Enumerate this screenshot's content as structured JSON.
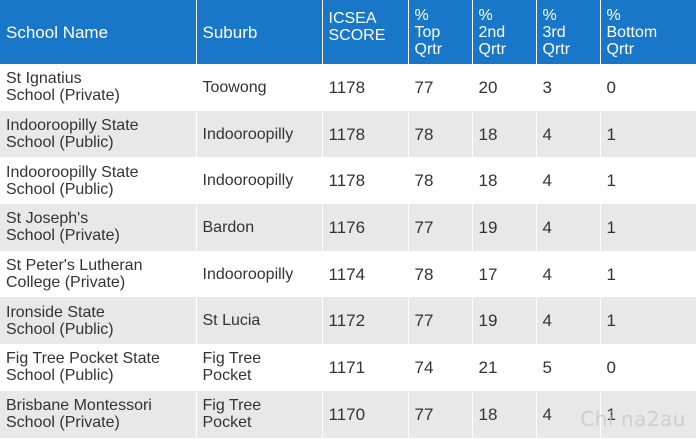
{
  "table": {
    "headers": {
      "school": "School Name",
      "suburb": "Suburb",
      "icsea": [
        "ICSEA",
        "SCORE"
      ],
      "top": [
        "%",
        "Top",
        "Qrtr"
      ],
      "second": [
        "%",
        "2nd",
        "Qrtr"
      ],
      "third": [
        "%",
        "3rd",
        "Qrtr"
      ],
      "bottom": [
        "%",
        "Bottom",
        "Qrtr"
      ]
    },
    "rows": [
      {
        "school": [
          "St Ignatius",
          "School (Private)"
        ],
        "suburb": [
          "Toowong"
        ],
        "icsea": "1178",
        "top": "77",
        "second": "20",
        "third": "3",
        "bottom": "0"
      },
      {
        "school": [
          "Indooroopilly State",
          "School (Public)"
        ],
        "suburb": [
          "Indooroopilly"
        ],
        "icsea": "1178",
        "top": "78",
        "second": "18",
        "third": "4",
        "bottom": "1"
      },
      {
        "school": [
          "Indooroopilly State",
          "School (Public)"
        ],
        "suburb": [
          "Indooroopilly"
        ],
        "icsea": "1178",
        "top": "78",
        "second": "18",
        "third": "4",
        "bottom": "1"
      },
      {
        "school": [
          "St Joseph's",
          "School (Private)"
        ],
        "suburb": [
          "Bardon"
        ],
        "icsea": "1176",
        "top": "77",
        "second": "19",
        "third": "4",
        "bottom": "1"
      },
      {
        "school": [
          "St Peter's Lutheran",
          "College (Private)"
        ],
        "suburb": [
          "Indooroopilly"
        ],
        "icsea": "1174",
        "top": "78",
        "second": "17",
        "third": "4",
        "bottom": "1"
      },
      {
        "school": [
          "Ironside State",
          "School (Public)"
        ],
        "suburb": [
          "St Lucia"
        ],
        "icsea": "1172",
        "top": "77",
        "second": "19",
        "third": "4",
        "bottom": "1"
      },
      {
        "school": [
          "Fig Tree Pocket State",
          "School (Public)"
        ],
        "suburb": [
          "Fig Tree",
          "Pocket"
        ],
        "icsea": "1171",
        "top": "74",
        "second": "21",
        "third": "5",
        "bottom": "0"
      },
      {
        "school": [
          "Brisbane Montessori",
          "School (Private)"
        ],
        "suburb": [
          "Fig Tree",
          "Pocket"
        ],
        "icsea": "1170",
        "top": "77",
        "second": "18",
        "third": "4",
        "bottom": "1"
      }
    ]
  },
  "watermark": "Chi na2au"
}
